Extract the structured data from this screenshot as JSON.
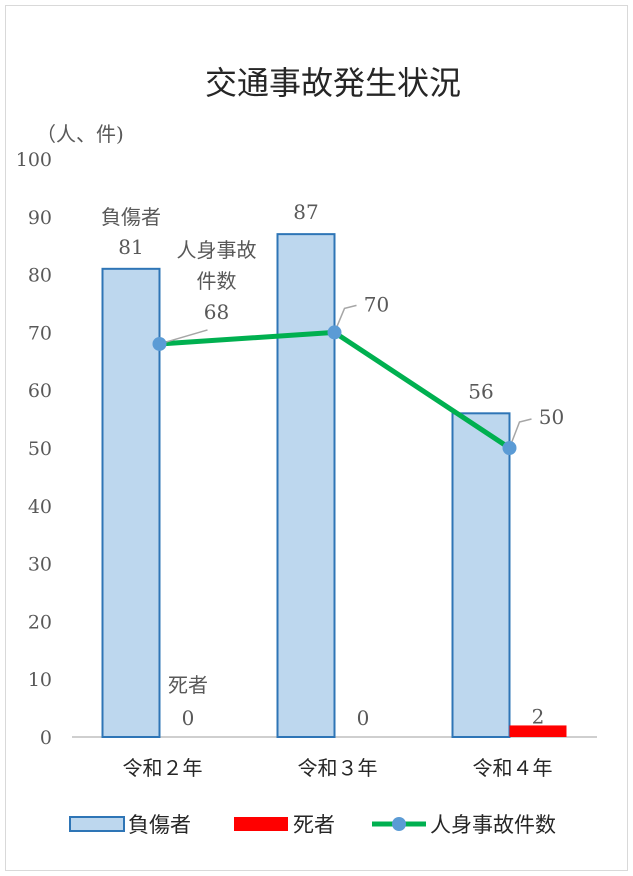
{
  "chart_data": {
    "type": "bar",
    "title": "交通事故発生状況",
    "ylabel": "（人、件)",
    "ylim": [
      0,
      100
    ],
    "yticks": [
      0,
      10,
      20,
      30,
      40,
      50,
      60,
      70,
      80,
      90,
      100
    ],
    "categories": [
      "令和２年",
      "令和３年",
      "令和４年"
    ],
    "series": [
      {
        "name": "負傷者",
        "type": "bar",
        "values": [
          81,
          87,
          56
        ],
        "color": "#bdd7ee",
        "border": "#2e75b6"
      },
      {
        "name": "死者",
        "type": "bar",
        "values": [
          0,
          0,
          2
        ],
        "color": "#ff0000"
      },
      {
        "name": "人身事故件数",
        "type": "line",
        "values": [
          68,
          70,
          50
        ],
        "color": "#00b050",
        "marker_color": "#5b9bd5"
      }
    ],
    "annotations": {
      "injured_label": "負傷者",
      "deaths_label": "死者",
      "accidents_label_line1": "人身事故",
      "accidents_label_line2": "件数"
    },
    "legend": [
      "負傷者",
      "死者",
      "人身事故件数"
    ],
    "legend_position": "bottom",
    "grid": false
  }
}
